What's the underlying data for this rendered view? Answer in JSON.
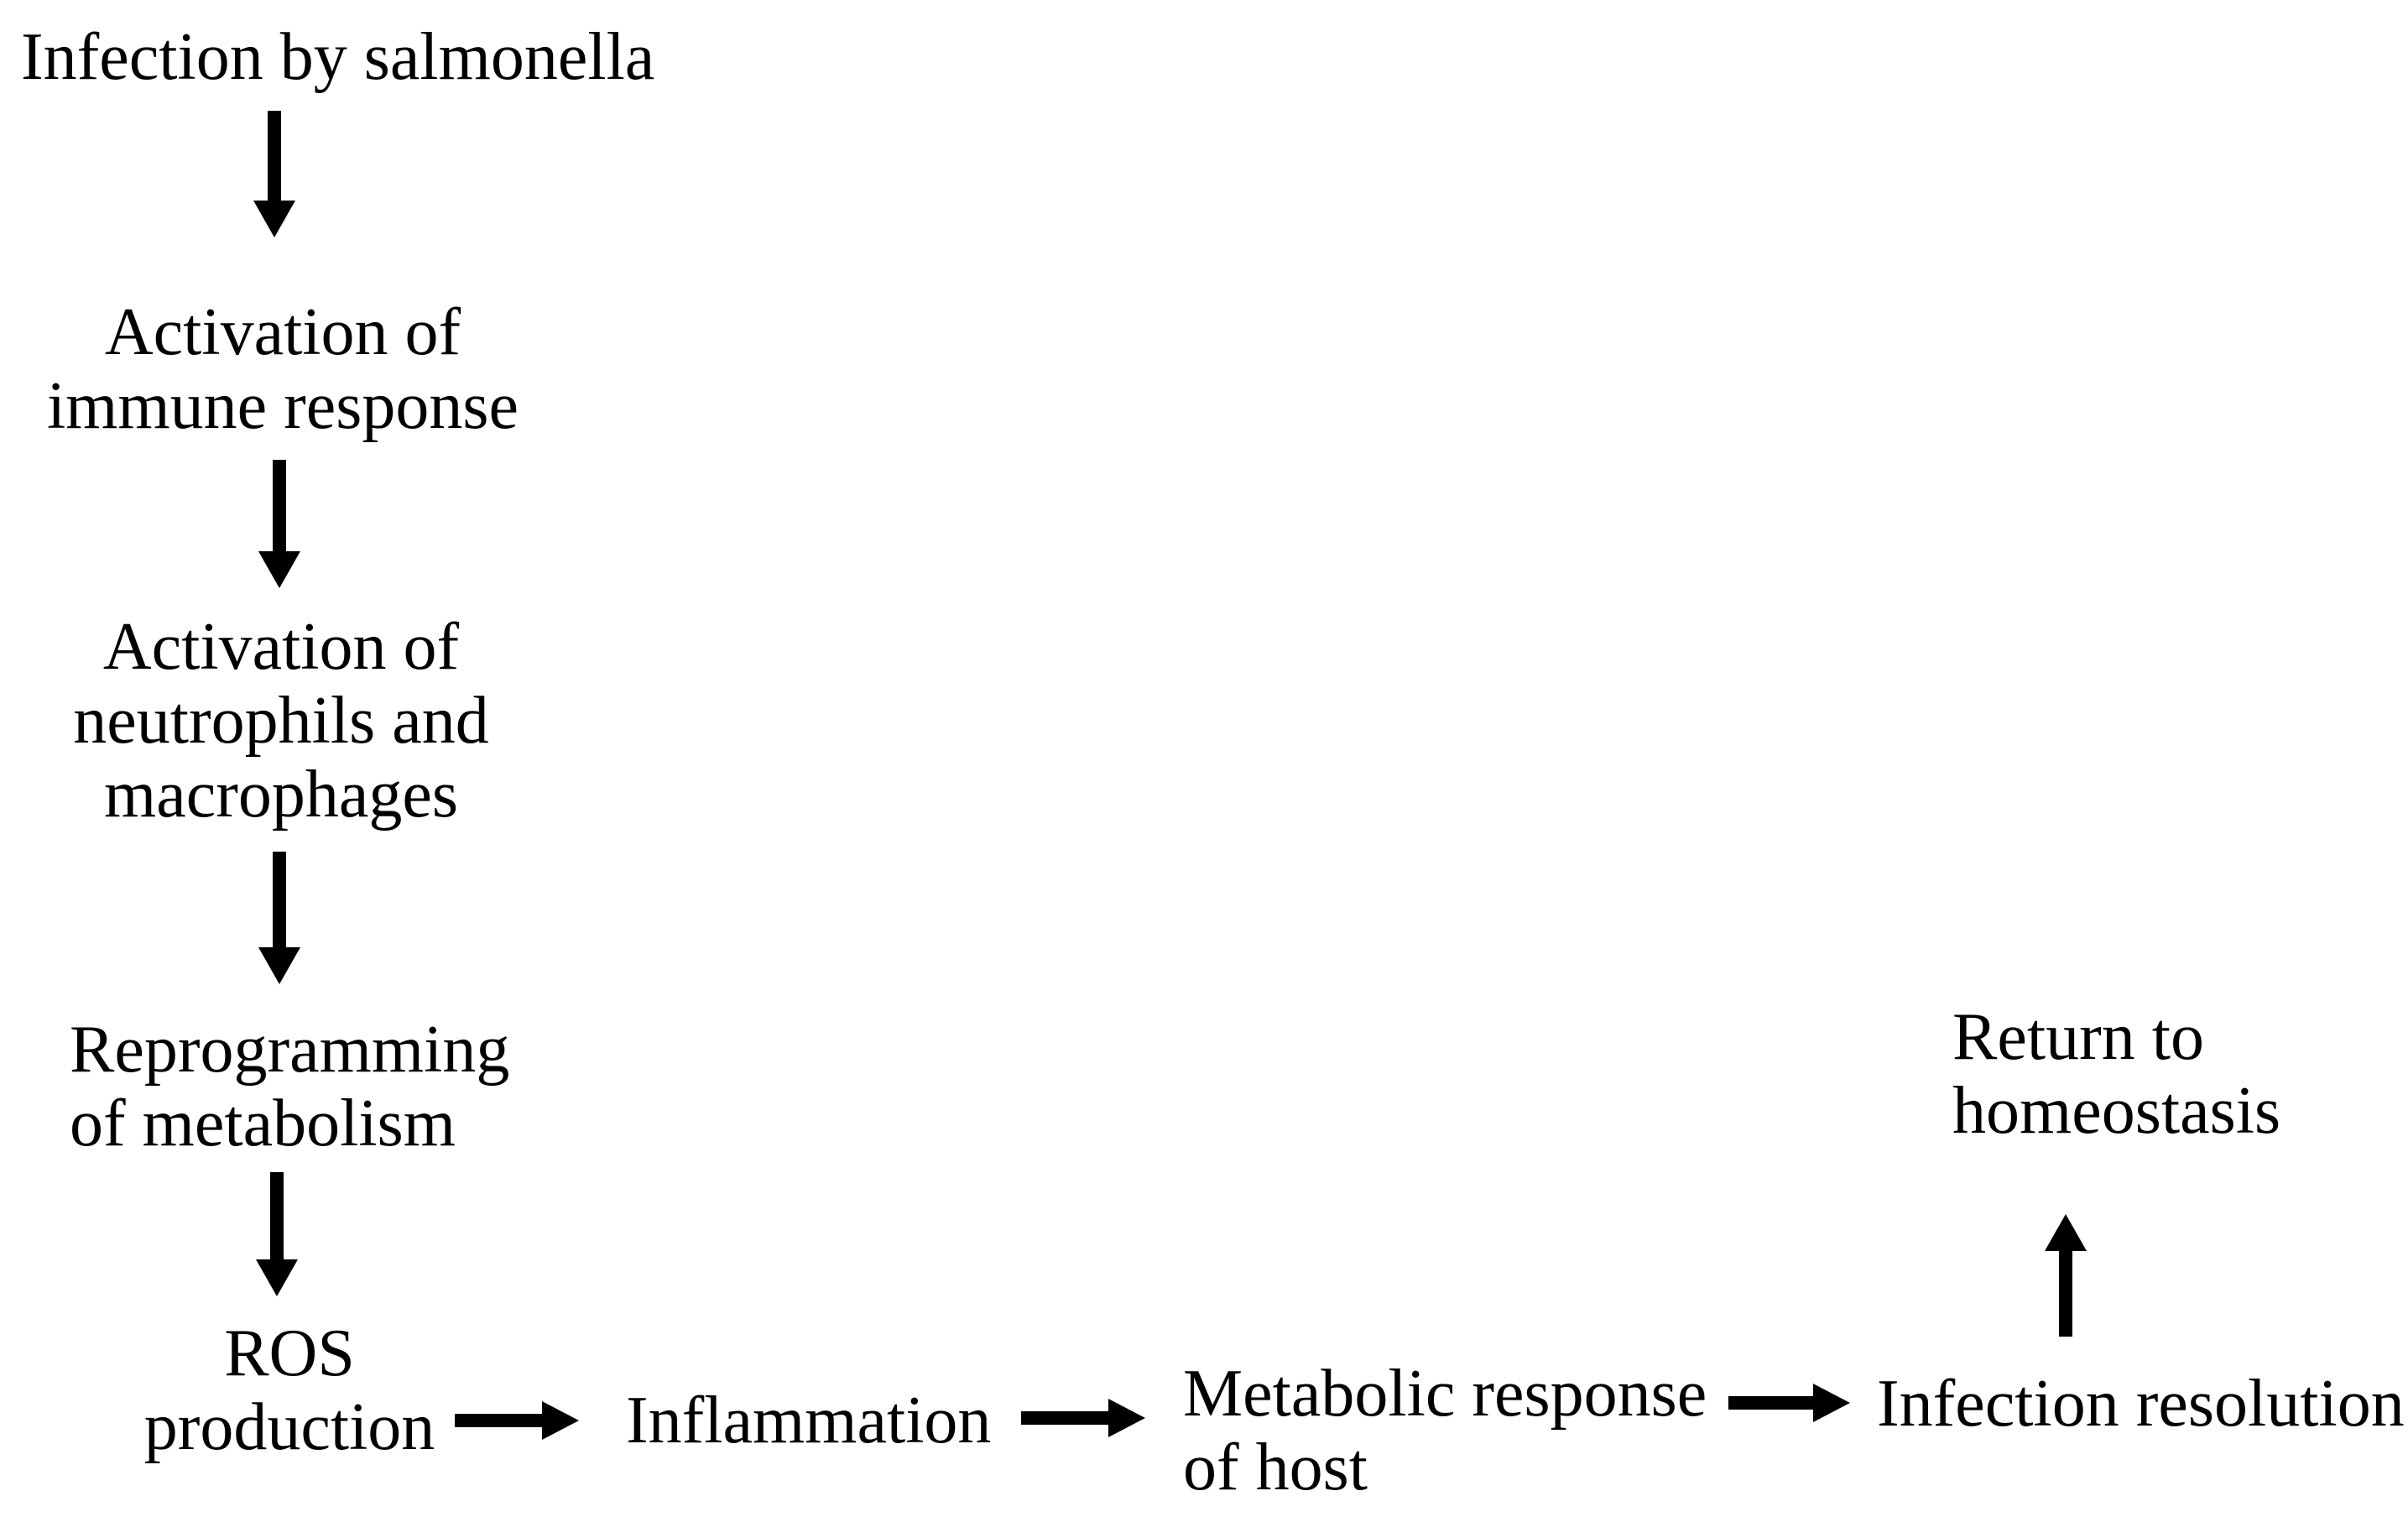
{
  "figure": {
    "type": "flowchart",
    "background_color": "#ffffff",
    "ink_color": "#000000",
    "nodes": [
      {
        "id": "infection-by-salmonella",
        "lines": [
          "Infection by salmonella"
        ]
      },
      {
        "id": "activation-of-immune-response",
        "lines": [
          "Activation of",
          "immune response"
        ]
      },
      {
        "id": "activation-of-neutrophils-and-macrophages",
        "lines": [
          "Activation of",
          "neutrophils and",
          "macrophages"
        ]
      },
      {
        "id": "reprogramming-of-metabolism",
        "lines": [
          "Reprogramming",
          "of metabolism"
        ]
      },
      {
        "id": "ros-production",
        "lines": [
          "ROS",
          "production"
        ]
      },
      {
        "id": "inflammation",
        "lines": [
          "Inflammation"
        ]
      },
      {
        "id": "metabolic-response-of-host",
        "lines": [
          "Metabolic response",
          "of host"
        ]
      },
      {
        "id": "infection-resolution",
        "lines": [
          "Infection resolution"
        ]
      },
      {
        "id": "return-to-homeostasis",
        "lines": [
          "Return to",
          "homeostasis"
        ]
      }
    ],
    "edges": [
      {
        "from": "infection-by-salmonella",
        "to": "activation-of-immune-response",
        "direction": "down"
      },
      {
        "from": "activation-of-immune-response",
        "to": "activation-of-neutrophils-and-macrophages",
        "direction": "down"
      },
      {
        "from": "activation-of-neutrophils-and-macrophages",
        "to": "reprogramming-of-metabolism",
        "direction": "down"
      },
      {
        "from": "reprogramming-of-metabolism",
        "to": "ros-production",
        "direction": "down"
      },
      {
        "from": "ros-production",
        "to": "inflammation",
        "direction": "right"
      },
      {
        "from": "inflammation",
        "to": "metabolic-response-of-host",
        "direction": "right"
      },
      {
        "from": "metabolic-response-of-host",
        "to": "infection-resolution",
        "direction": "right"
      },
      {
        "from": "infection-resolution",
        "to": "return-to-homeostasis",
        "direction": "up"
      }
    ]
  }
}
